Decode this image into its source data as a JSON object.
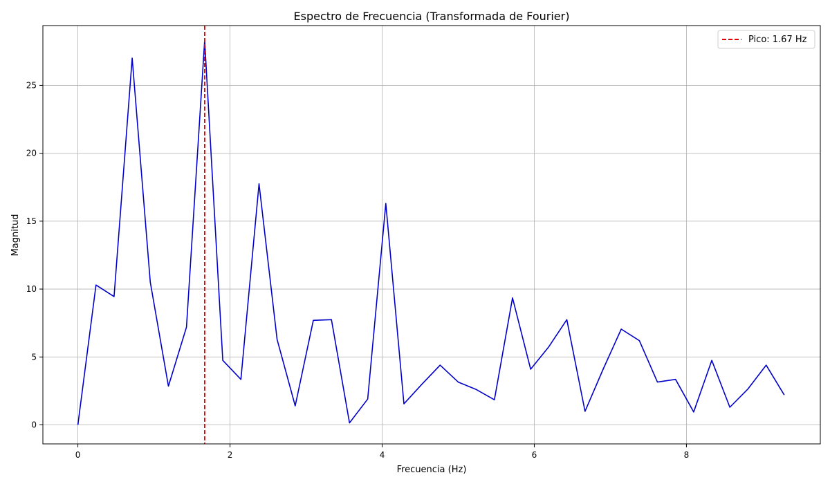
{
  "chart_data": {
    "type": "line",
    "title": "Espectro de Frecuencia (Transformada de Fourier)",
    "xlabel": "Frecuencia (Hz)",
    "ylabel": "Magnitud",
    "xlim": [
      -0.46,
      9.76
    ],
    "ylim": [
      -1.4,
      29.4
    ],
    "xticks": [
      0,
      2,
      4,
      6,
      8
    ],
    "yticks": [
      0,
      5,
      10,
      15,
      20,
      25
    ],
    "grid": true,
    "legend_position": "top-right",
    "series": [
      {
        "color": "#0000c8",
        "x": [
          0.0,
          0.238,
          0.476,
          0.714,
          0.952,
          1.19,
          1.428,
          1.667,
          1.905,
          2.143,
          2.381,
          2.619,
          2.857,
          3.095,
          3.333,
          3.571,
          3.81,
          4.048,
          4.286,
          4.524,
          4.762,
          5.0,
          5.238,
          5.476,
          5.714,
          5.952,
          6.19,
          6.428,
          6.667,
          6.905,
          7.143,
          7.381,
          7.619,
          7.857,
          8.095,
          8.333,
          8.571,
          8.81,
          9.048,
          9.286
        ],
        "y": [
          0.0,
          10.3,
          9.45,
          27.0,
          10.5,
          2.85,
          7.2,
          28.3,
          4.75,
          3.35,
          17.75,
          6.3,
          1.4,
          7.7,
          7.75,
          0.15,
          1.9,
          16.3,
          1.55,
          3.0,
          4.4,
          3.15,
          2.6,
          1.85,
          9.35,
          4.1,
          5.75,
          7.75,
          1.0,
          4.1,
          7.05,
          6.2,
          3.15,
          3.35,
          0.95,
          4.75,
          1.3,
          2.65,
          4.4,
          2.2
        ]
      }
    ],
    "annotations": [
      {
        "type": "vline",
        "x": 1.667,
        "color": "#e00000",
        "style": "dashed",
        "label": "Pico: 1.67 Hz"
      }
    ]
  }
}
